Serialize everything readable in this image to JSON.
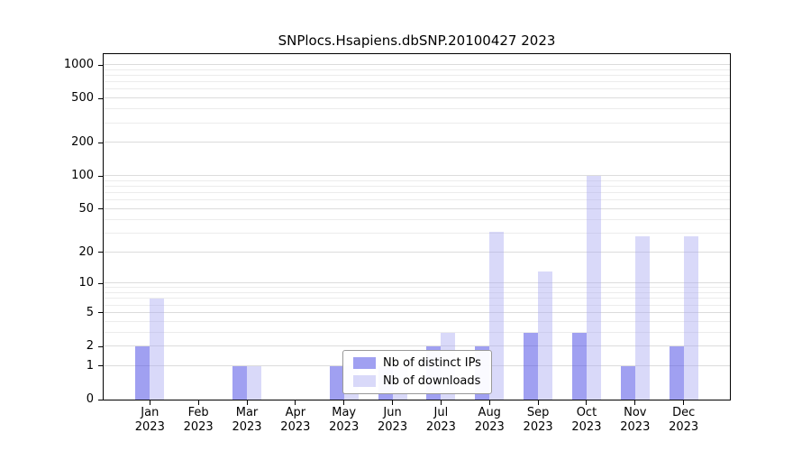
{
  "chart_data": {
    "type": "bar",
    "title": "SNPlocs.Hsapiens.dbSNP.20100427 2023",
    "categories": [
      "Jan",
      "Feb",
      "Mar",
      "Apr",
      "May",
      "Jun",
      "Jul",
      "Aug",
      "Sep",
      "Oct",
      "Nov",
      "Dec"
    ],
    "year_label": "2023",
    "series": [
      {
        "name": "Nb of distinct IPs",
        "color": "rgba(82,82,230,0.55)",
        "color_hex_over_white": "#a0a0f1",
        "values": [
          2,
          0,
          1,
          0,
          1,
          1,
          2,
          2,
          3,
          3,
          1,
          2
        ]
      },
      {
        "name": "Nb of downloads",
        "color": "rgba(165,165,240,0.42)",
        "color_hex_over_white": "#d9d9f6",
        "values": [
          7,
          0,
          1,
          0,
          1,
          1,
          3,
          31,
          13,
          101,
          28,
          28
        ]
      }
    ],
    "y_ticks": [
      0,
      1,
      2,
      5,
      10,
      20,
      50,
      100,
      200,
      500,
      1000
    ],
    "xlabel": "",
    "ylabel": "",
    "yscale": "log10(value+1)",
    "ylim": [
      0,
      1500
    ],
    "grid": true,
    "legend_position": "bottom-center-inside",
    "frame_color": "#000000",
    "background_color": "#ffffff"
  },
  "legend": {
    "items": [
      {
        "label": "Nb of distinct IPs"
      },
      {
        "label": "Nb of downloads"
      }
    ]
  }
}
